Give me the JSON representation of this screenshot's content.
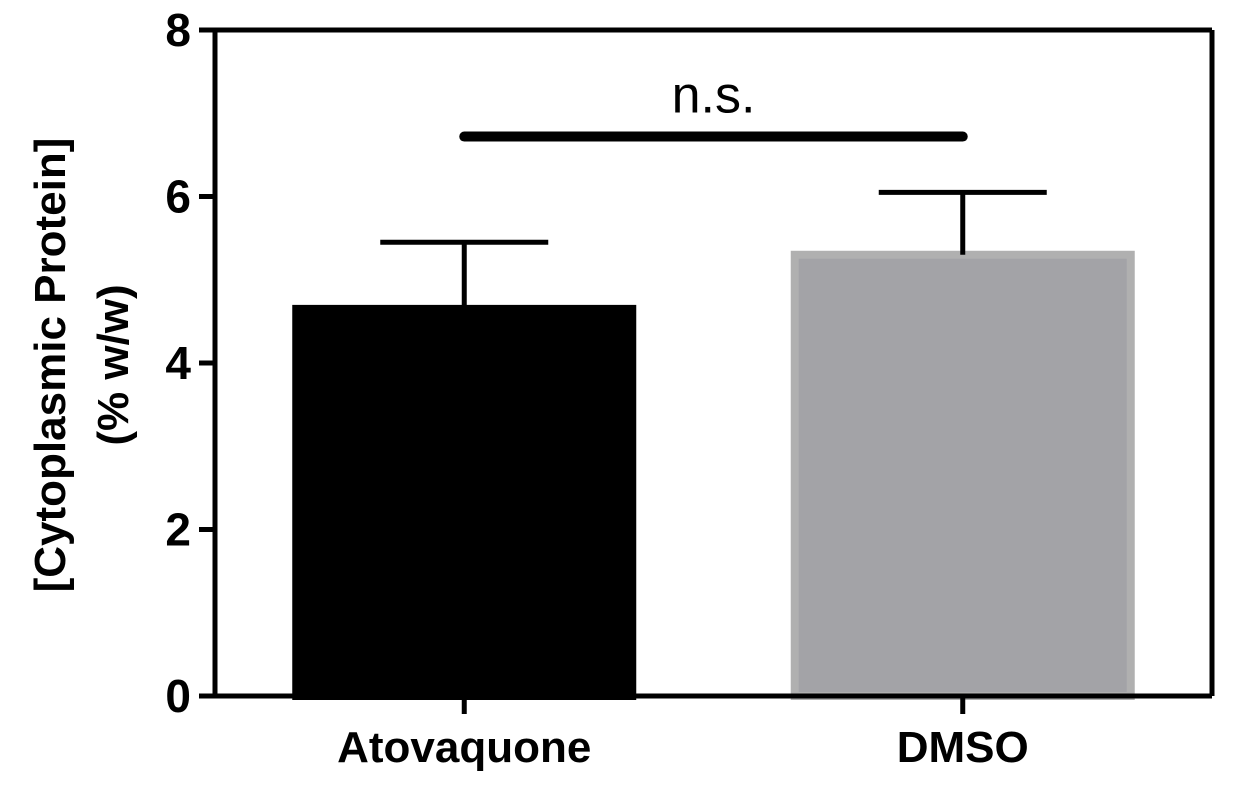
{
  "chart_data": {
    "type": "bar",
    "categories": [
      "Atovaquone",
      "DMSO"
    ],
    "values": [
      4.65,
      5.3
    ],
    "error_upper": [
      5.45,
      6.05
    ],
    "ylabel_lines": [
      "[Cytoplasmic Protein]",
      "(% w/w)"
    ],
    "ylim": [
      0,
      8
    ],
    "yticks": [
      "0",
      "2",
      "4",
      "6",
      "8"
    ],
    "bar_colors": [
      "#000000",
      "#a3a3a7"
    ],
    "bar_edge_colors": [
      "#000000",
      "#b0b0b0"
    ],
    "significance": {
      "label": "n.s.",
      "y": 6.72,
      "between": [
        "Atovaquone",
        "DMSO"
      ]
    },
    "grid": false,
    "legend": "none"
  }
}
